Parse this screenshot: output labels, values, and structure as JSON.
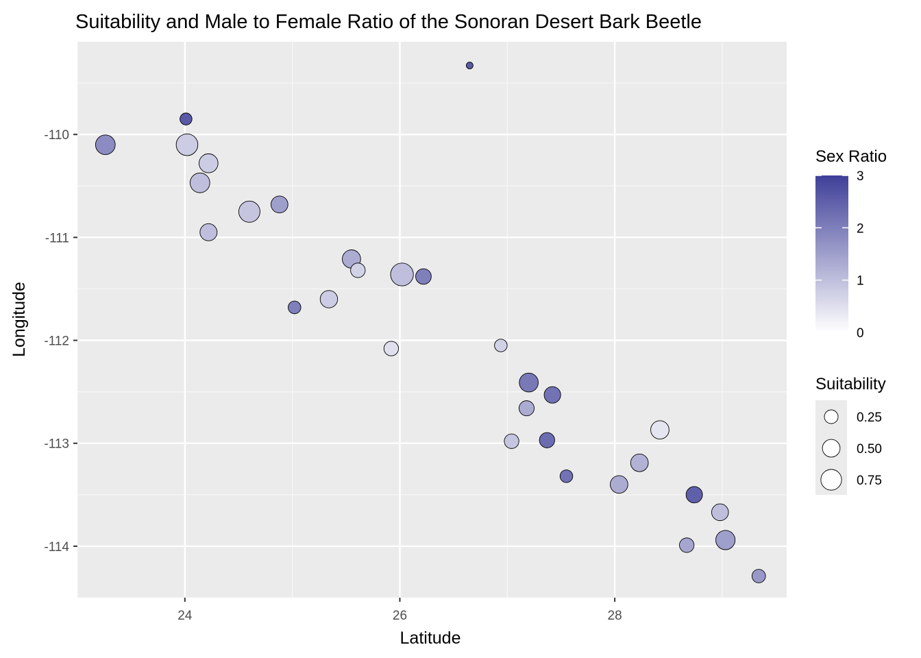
{
  "chart_data": {
    "type": "scatter",
    "title": "Suitability and Male to Female Ratio of the Sonoran Desert Bark Beetle",
    "xlabel": "Latitude",
    "ylabel": "Longitude",
    "xlim": [
      23.0,
      29.6
    ],
    "ylim": [
      -114.5,
      -109.1
    ],
    "x_ticks": [
      24,
      26,
      28
    ],
    "y_ticks": [
      -110,
      -111,
      -112,
      -113,
      -114
    ],
    "grid": true,
    "panel_background": "#ebebeb",
    "color_scale": {
      "title": "Sex Ratio",
      "low_color": "#ffffff",
      "high_color": "#3f3f99",
      "limits": [
        0,
        3
      ],
      "breaks": [
        0,
        1,
        2,
        3
      ]
    },
    "size_scale": {
      "title": "Suitability",
      "breaks": [
        0.25,
        0.5,
        0.75
      ]
    },
    "legend_position": "right",
    "points": [
      {
        "lat": 24.01,
        "lon": -109.85,
        "suitability": 0.17,
        "sex_ratio": 2.6
      },
      {
        "lat": 26.65,
        "lon": -109.33,
        "suitability": 0.02,
        "sex_ratio": 2.6
      },
      {
        "lat": 23.26,
        "lon": -110.1,
        "suitability": 0.66,
        "sex_ratio": 1.8
      },
      {
        "lat": 24.02,
        "lon": -110.1,
        "suitability": 0.84,
        "sex_ratio": 0.8
      },
      {
        "lat": 24.22,
        "lon": -110.28,
        "suitability": 0.6,
        "sex_ratio": 0.8
      },
      {
        "lat": 24.14,
        "lon": -110.47,
        "suitability": 0.66,
        "sex_ratio": 1.0
      },
      {
        "lat": 24.6,
        "lon": -110.75,
        "suitability": 0.8,
        "sex_ratio": 0.9
      },
      {
        "lat": 24.88,
        "lon": -110.68,
        "suitability": 0.45,
        "sex_ratio": 1.5
      },
      {
        "lat": 24.22,
        "lon": -110.95,
        "suitability": 0.46,
        "sex_ratio": 1.0
      },
      {
        "lat": 25.55,
        "lon": -111.21,
        "suitability": 0.55,
        "sex_ratio": 1.3
      },
      {
        "lat": 25.61,
        "lon": -111.32,
        "suitability": 0.3,
        "sex_ratio": 0.7
      },
      {
        "lat": 26.02,
        "lon": -111.36,
        "suitability": 0.95,
        "sex_ratio": 1.0
      },
      {
        "lat": 26.22,
        "lon": -111.38,
        "suitability": 0.36,
        "sex_ratio": 2.0
      },
      {
        "lat": 25.34,
        "lon": -111.6,
        "suitability": 0.48,
        "sex_ratio": 0.8
      },
      {
        "lat": 25.02,
        "lon": -111.68,
        "suitability": 0.2,
        "sex_ratio": 2.0
      },
      {
        "lat": 25.92,
        "lon": -112.08,
        "suitability": 0.3,
        "sex_ratio": 0.5
      },
      {
        "lat": 26.94,
        "lon": -112.05,
        "suitability": 0.2,
        "sex_ratio": 0.7
      },
      {
        "lat": 27.2,
        "lon": -112.41,
        "suitability": 0.6,
        "sex_ratio": 2.1
      },
      {
        "lat": 27.42,
        "lon": -112.53,
        "suitability": 0.42,
        "sex_ratio": 2.2
      },
      {
        "lat": 27.18,
        "lon": -112.66,
        "suitability": 0.33,
        "sex_ratio": 1.3
      },
      {
        "lat": 27.04,
        "lon": -112.98,
        "suitability": 0.3,
        "sex_ratio": 0.9
      },
      {
        "lat": 27.37,
        "lon": -112.97,
        "suitability": 0.34,
        "sex_ratio": 2.3
      },
      {
        "lat": 28.42,
        "lon": -112.87,
        "suitability": 0.55,
        "sex_ratio": 0.4
      },
      {
        "lat": 28.23,
        "lon": -113.19,
        "suitability": 0.5,
        "sex_ratio": 1.2
      },
      {
        "lat": 27.55,
        "lon": -113.32,
        "suitability": 0.2,
        "sex_ratio": 2.2
      },
      {
        "lat": 28.04,
        "lon": -113.4,
        "suitability": 0.5,
        "sex_ratio": 1.3
      },
      {
        "lat": 28.74,
        "lon": -113.5,
        "suitability": 0.41,
        "sex_ratio": 2.5
      },
      {
        "lat": 28.98,
        "lon": -113.67,
        "suitability": 0.44,
        "sex_ratio": 1.0
      },
      {
        "lat": 28.67,
        "lon": -113.99,
        "suitability": 0.3,
        "sex_ratio": 1.4
      },
      {
        "lat": 29.03,
        "lon": -113.94,
        "suitability": 0.63,
        "sex_ratio": 1.5
      },
      {
        "lat": 29.34,
        "lon": -114.29,
        "suitability": 0.24,
        "sex_ratio": 1.6
      }
    ]
  }
}
